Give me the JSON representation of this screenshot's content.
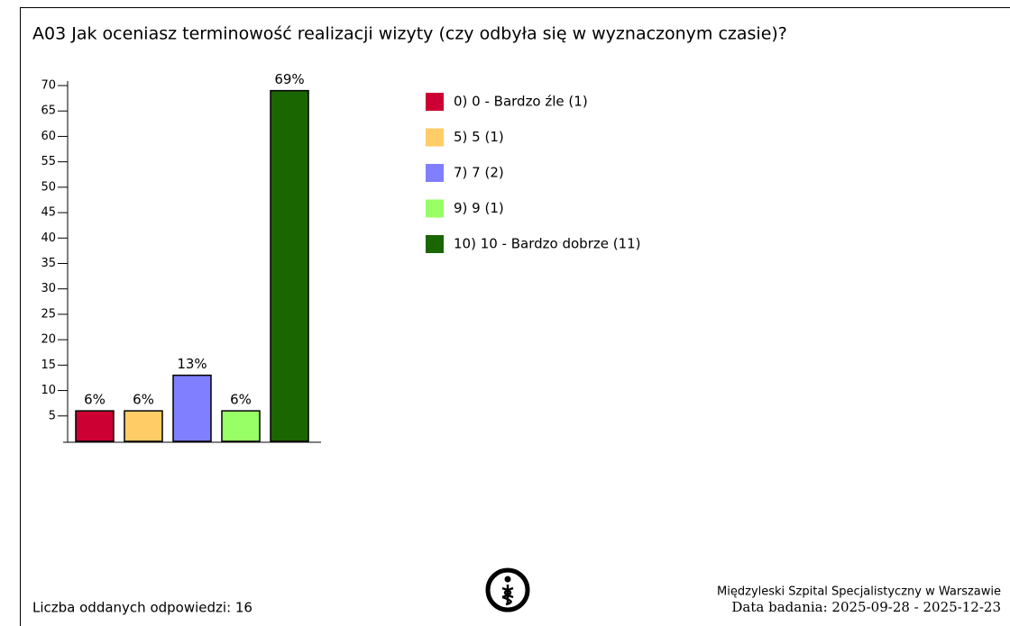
{
  "chart_data": {
    "type": "bar",
    "title": "A03 Jak oceniasz terminowość realizacji wizyty (czy odbyła się w wyznaczonym czasie)?",
    "categories": [
      "0) 0 - Bardzo źle (1)",
      "5) 5 (1)",
      "7) 7 (2)",
      "9) 9 (1)",
      "10) 10 - Bardzo dobrze (11)"
    ],
    "values": [
      6,
      6,
      13,
      6,
      69
    ],
    "value_labels": [
      "6%",
      "6%",
      "13%",
      "6%",
      "69%"
    ],
    "colors": [
      "#cc0033",
      "#ffcc66",
      "#7f7fff",
      "#99ff66",
      "#1a6600"
    ],
    "ylim": [
      0,
      70
    ],
    "yticks": [
      5,
      10,
      15,
      20,
      25,
      30,
      35,
      40,
      45,
      50,
      55,
      60,
      65,
      70
    ],
    "legend": "right"
  },
  "footer": {
    "responses": "Liczba oddanych odpowiedzi: 16",
    "hospital": "Międzyleski Szpital Specjalistyczny w Warszawie",
    "dates": "Data badania: 2025-09-28 - 2025-12-23"
  }
}
